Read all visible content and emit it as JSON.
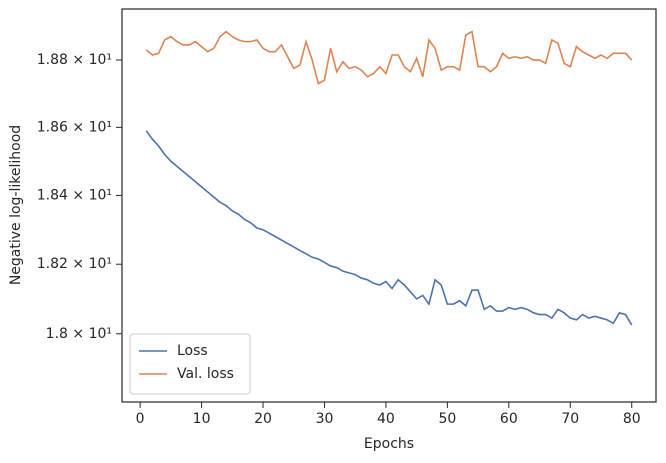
{
  "chart_data": {
    "type": "line",
    "x_label": "Epochs",
    "y_label": "Negative log-likelihood",
    "x": [
      1,
      2,
      3,
      4,
      5,
      6,
      7,
      8,
      9,
      10,
      11,
      12,
      13,
      14,
      15,
      16,
      17,
      18,
      19,
      20,
      21,
      22,
      23,
      24,
      25,
      26,
      27,
      28,
      29,
      30,
      31,
      32,
      33,
      34,
      35,
      36,
      37,
      38,
      39,
      40,
      41,
      42,
      43,
      44,
      45,
      46,
      47,
      48,
      49,
      50,
      51,
      52,
      53,
      54,
      55,
      56,
      57,
      58,
      59,
      60,
      61,
      62,
      63,
      64,
      65,
      66,
      67,
      68,
      69,
      70,
      71,
      72,
      73,
      74,
      75,
      76,
      77,
      78,
      79,
      80
    ],
    "series": [
      {
        "name": "Loss",
        "color": "#4c72b0",
        "values": [
          18.59,
          18.565,
          18.545,
          18.52,
          18.5,
          18.485,
          18.47,
          18.455,
          18.44,
          18.425,
          18.41,
          18.395,
          18.38,
          18.37,
          18.355,
          18.345,
          18.33,
          18.32,
          18.305,
          18.3,
          18.29,
          18.28,
          18.27,
          18.26,
          18.25,
          18.24,
          18.23,
          18.22,
          18.215,
          18.205,
          18.195,
          18.19,
          18.18,
          18.175,
          18.17,
          18.16,
          18.155,
          18.145,
          18.14,
          18.15,
          18.13,
          18.155,
          18.14,
          18.12,
          18.1,
          18.11,
          18.085,
          18.155,
          18.14,
          18.085,
          18.085,
          18.095,
          18.08,
          18.125,
          18.125,
          18.07,
          18.08,
          18.065,
          18.065,
          18.075,
          18.07,
          18.075,
          18.07,
          18.06,
          18.055,
          18.055,
          18.045,
          18.07,
          18.06,
          18.045,
          18.04,
          18.055,
          18.045,
          18.05,
          18.045,
          18.04,
          18.03,
          18.06,
          18.055,
          18.025
        ]
      },
      {
        "name": "Val. loss",
        "color": "#dd8452",
        "values": [
          18.83,
          18.815,
          18.82,
          18.86,
          18.87,
          18.855,
          18.845,
          18.845,
          18.855,
          18.84,
          18.825,
          18.835,
          18.87,
          18.885,
          18.87,
          18.86,
          18.855,
          18.855,
          18.86,
          18.835,
          18.825,
          18.825,
          18.845,
          18.81,
          18.775,
          18.785,
          18.855,
          18.8,
          18.73,
          18.74,
          18.835,
          18.765,
          18.795,
          18.775,
          18.78,
          18.77,
          18.75,
          18.76,
          18.78,
          18.76,
          18.815,
          18.815,
          18.78,
          18.765,
          18.805,
          18.75,
          18.86,
          18.835,
          18.77,
          18.78,
          18.78,
          18.77,
          18.875,
          18.885,
          18.78,
          18.78,
          18.765,
          18.78,
          18.82,
          18.805,
          18.81,
          18.805,
          18.81,
          18.8,
          18.8,
          18.79,
          18.86,
          18.85,
          18.79,
          18.78,
          18.84,
          18.825,
          18.815,
          18.805,
          18.815,
          18.805,
          18.82,
          18.82,
          18.82,
          18.8
        ]
      }
    ],
    "xlim": [
      -2.95,
      83.95
    ],
    "xticks": [
      0,
      10,
      20,
      30,
      40,
      50,
      60,
      70,
      80
    ],
    "ylim": [
      17.806,
      18.953
    ],
    "y_scale": "log",
    "yticks": [
      {
        "value": 18.0,
        "label": "1.8 × 10¹"
      },
      {
        "value": 18.2,
        "label": "1.82 × 10¹"
      },
      {
        "value": 18.4,
        "label": "1.84 × 10¹"
      },
      {
        "value": 18.6,
        "label": "1.86 × 10¹"
      },
      {
        "value": 18.8,
        "label": "1.88 × 10¹"
      }
    ],
    "legend": "lower left",
    "grid": false
  }
}
